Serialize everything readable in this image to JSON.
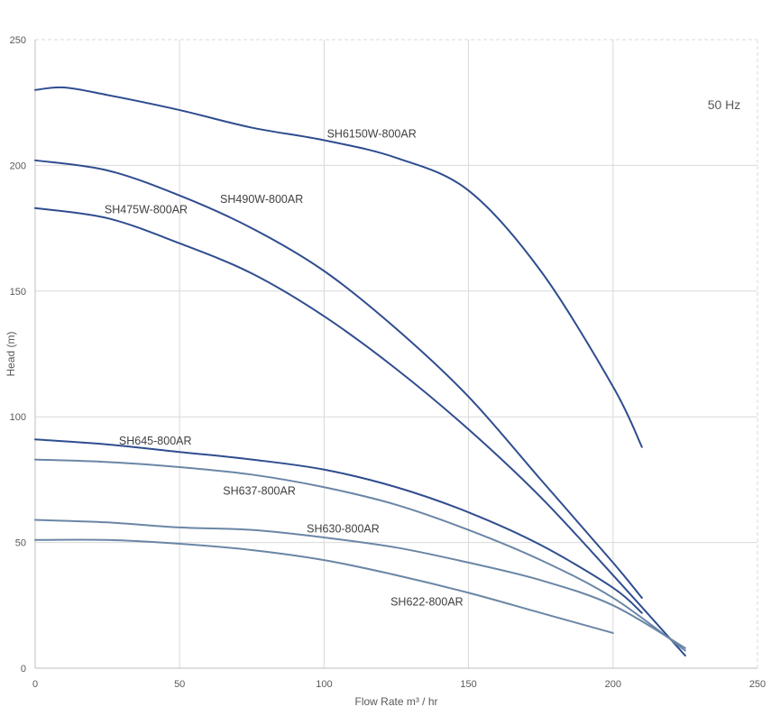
{
  "chart_data": {
    "type": "line",
    "title": "",
    "xlabel": "Flow Rate m³ / hr",
    "ylabel": "Head (m)",
    "xlim": [
      0,
      250
    ],
    "ylim": [
      0,
      250
    ],
    "x_ticks": [
      0,
      50,
      100,
      150,
      200,
      250
    ],
    "y_ticks": [
      0,
      50,
      100,
      150,
      200,
      250
    ],
    "grid": true,
    "annotation": "50 Hz",
    "colors": {
      "dark": "#2F4D8F",
      "light": "#6A86A6",
      "grid": "#d9d9d9",
      "text": "#595959"
    },
    "series": [
      {
        "name": "SH6150W-800AR",
        "color": "#2F4D8F",
        "x": [
          0,
          10,
          25,
          50,
          75,
          100,
          125,
          150,
          175,
          200,
          210
        ],
        "y": [
          230,
          231,
          228,
          222,
          215,
          210,
          203,
          190,
          158,
          112,
          88
        ]
      },
      {
        "name": "SH490W-800AR",
        "color": "#2F4D8F",
        "x": [
          0,
          25,
          50,
          75,
          100,
          125,
          150,
          175,
          200,
          210
        ],
        "y": [
          202,
          198,
          188,
          175,
          158,
          135,
          108,
          75,
          42,
          28
        ]
      },
      {
        "name": "SH475W-800AR",
        "color": "#2F4D8F",
        "x": [
          0,
          25,
          50,
          75,
          100,
          125,
          150,
          175,
          200,
          225
        ],
        "y": [
          183,
          179,
          169,
          157,
          140,
          119,
          95,
          68,
          37,
          5
        ]
      },
      {
        "name": "SH645-800AR",
        "color": "#2F4D8F",
        "x": [
          0,
          25,
          50,
          75,
          100,
          125,
          150,
          175,
          200,
          210
        ],
        "y": [
          91,
          89,
          86,
          83,
          79,
          72,
          62,
          49,
          32,
          22
        ]
      },
      {
        "name": "SH637-800AR",
        "color": "#6A86A6",
        "x": [
          0,
          25,
          50,
          75,
          100,
          125,
          150,
          175,
          200,
          225
        ],
        "y": [
          83,
          82,
          80,
          77,
          72,
          65,
          55,
          43,
          28,
          7
        ]
      },
      {
        "name": "SH630-800AR",
        "color": "#6A86A6",
        "x": [
          0,
          25,
          50,
          75,
          100,
          125,
          150,
          175,
          200,
          225
        ],
        "y": [
          59,
          58,
          56,
          55,
          52,
          48,
          42,
          35,
          25,
          8
        ]
      },
      {
        "name": "SH622-800AR",
        "color": "#6A86A6",
        "x": [
          0,
          25,
          50,
          75,
          100,
          125,
          150,
          175,
          200
        ],
        "y": [
          51,
          51,
          49.5,
          47,
          43,
          37,
          30,
          22,
          14
        ]
      }
    ],
    "labels": [
      {
        "text": "SH6150W-800AR",
        "x": 101,
        "y": 211
      },
      {
        "text": "SH490W-800AR",
        "x": 64,
        "y": 185
      },
      {
        "text": "SH475W-800AR",
        "x": 24,
        "y": 181
      },
      {
        "text": "SH645-800AR",
        "x": 29,
        "y": 89
      },
      {
        "text": "SH637-800AR",
        "x": 65,
        "y": 69
      },
      {
        "text": "SH630-800AR",
        "x": 94,
        "y": 54
      },
      {
        "text": "SH622-800AR",
        "x": 123,
        "y": 25
      }
    ]
  }
}
